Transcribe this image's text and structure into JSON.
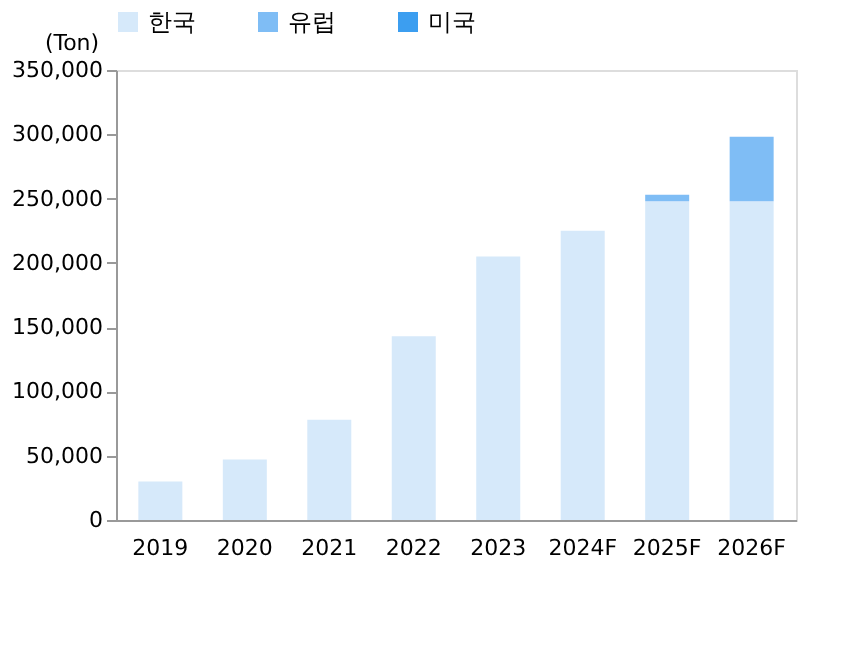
{
  "chart_data": {
    "type": "bar",
    "stacked": true,
    "ylabel": "(Ton)",
    "categories": [
      "2019",
      "2020",
      "2021",
      "2022",
      "2023",
      "2024F",
      "2025F",
      "2026F"
    ],
    "series": [
      {
        "name": "한국",
        "color": "#d6e9fa",
        "values": [
          30000,
          47000,
          78000,
          143000,
          205000,
          225000,
          248000,
          248000
        ]
      },
      {
        "name": "유럽",
        "color": "#7fbdf5",
        "values": [
          null,
          null,
          null,
          null,
          null,
          null,
          5000,
          50000
        ]
      },
      {
        "name": "미국",
        "color": "#3c9ef0",
        "values": [
          null,
          null,
          null,
          null,
          null,
          null,
          null,
          null
        ]
      }
    ],
    "ylim": [
      0,
      350000
    ],
    "yticks": [
      0,
      {
        "value": 50000,
        "label": "50,000"
      },
      {
        "value": 100000,
        "label": "100,000"
      },
      {
        "value": 150000,
        "label": "150,000"
      },
      {
        "value": 200000,
        "label": "200,000"
      },
      {
        "value": 250000,
        "label": "250,000"
      },
      {
        "value": 300000,
        "label": "300,000"
      },
      {
        "value": 350000,
        "label": "350,000"
      }
    ],
    "grid": false,
    "legend": "top"
  }
}
